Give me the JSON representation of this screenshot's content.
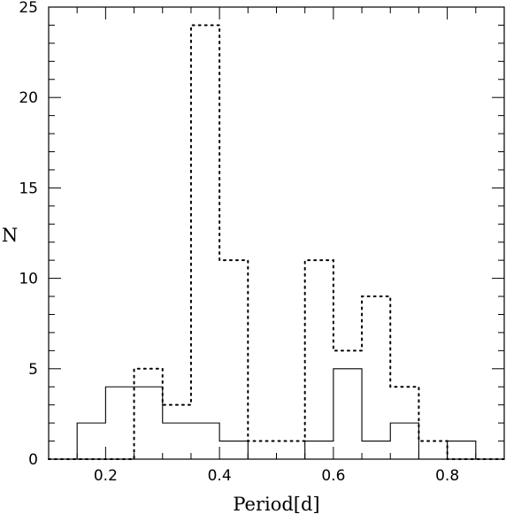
{
  "chart_data": {
    "type": "histogram",
    "xlabel": "Period[d]",
    "ylabel": "N",
    "xlim": [
      0.1,
      0.9
    ],
    "ylim": [
      0,
      25
    ],
    "xticks_major": [
      0.2,
      0.4,
      0.6,
      0.8
    ],
    "xtick_labels": [
      "0.2",
      "0.4",
      "0.6",
      "0.8"
    ],
    "yticks_major": [
      0,
      5,
      10,
      15,
      20,
      25
    ],
    "ytick_labels": [
      "0",
      "5",
      "10",
      "15",
      "20",
      "25"
    ],
    "grid": false,
    "bin_edges": [
      0.1,
      0.15,
      0.2,
      0.25,
      0.3,
      0.35,
      0.4,
      0.45,
      0.5,
      0.55,
      0.6,
      0.65,
      0.7,
      0.75,
      0.8,
      0.85,
      0.9
    ],
    "series": [
      {
        "style": "solid",
        "color": "#000000",
        "values": [
          0,
          2,
          4,
          4,
          2,
          2,
          1,
          0,
          0,
          1,
          5,
          1,
          2,
          0,
          1,
          0
        ]
      },
      {
        "style": "dotted",
        "color": "#000000",
        "values": [
          0,
          0,
          0,
          5,
          3,
          24,
          11,
          1,
          1,
          11,
          6,
          9,
          4,
          1,
          0,
          0
        ]
      }
    ]
  }
}
